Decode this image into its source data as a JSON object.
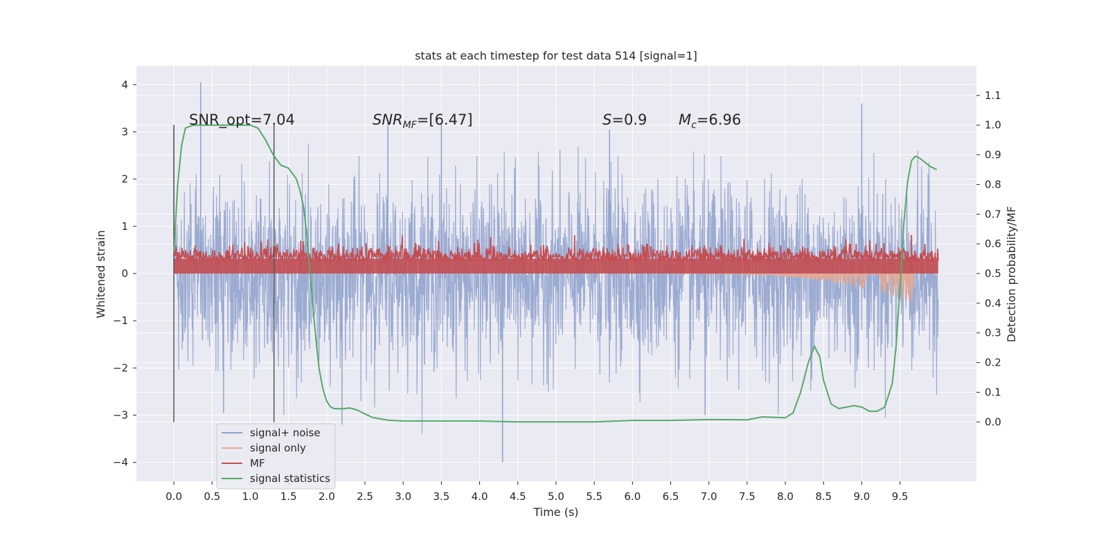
{
  "chart_data": {
    "type": "line",
    "title": "stats at each timestep for test data 514 [signal=1]",
    "xlabel": "Time (s)",
    "ylabel_left": "Whitened strain",
    "ylabel_right": "Detection probability/MF",
    "xlim": [
      -0.49,
      10.5
    ],
    "ylim_left": [
      -4.4,
      4.4
    ],
    "ylim_right": [
      -0.2,
      1.2
    ],
    "x_ticks": [
      "0.0",
      "0.5",
      "1.0",
      "1.5",
      "2.0",
      "2.5",
      "3.0",
      "3.5",
      "4.0",
      "4.5",
      "5.0",
      "5.5",
      "6.0",
      "6.5",
      "7.0",
      "7.5",
      "8.0",
      "8.5",
      "9.0",
      "9.5"
    ],
    "y_ticks_left": [
      "4",
      "3",
      "2",
      "1",
      "0",
      "−1",
      "−2",
      "−3",
      "−4"
    ],
    "y_ticks_right": [
      "1.1",
      "1.0",
      "0.9",
      "0.8",
      "0.7",
      "0.6",
      "0.5",
      "0.4",
      "0.3",
      "0.2",
      "0.1",
      "0.0"
    ],
    "grid": true,
    "legend_position": "lower-left",
    "annotations": {
      "snr_opt": "SNR_opt=7.04",
      "snr_mf_main": "SNR",
      "snr_mf_sub": "MF",
      "snr_mf_value": "=[6.47]",
      "s_main": "S",
      "s_value": "=0.9",
      "mc_main": "M",
      "mc_sub": "c",
      "mc_value": "=6.96"
    },
    "vertical_lines_x": [
      0.0,
      1.31
    ],
    "series": [
      {
        "name": "signal+ noise",
        "color": "#8da0cb",
        "axis": "left",
        "noise_amplitude": 1.3,
        "spikes": [
          [
            0.35,
            4.05
          ],
          [
            0.0,
            3.1
          ],
          [
            2.8,
            3.2
          ],
          [
            3.5,
            3.2
          ],
          [
            5.7,
            3.05
          ],
          [
            9.0,
            3.6
          ],
          [
            4.3,
            -4.0
          ],
          [
            2.2,
            -3.2
          ],
          [
            0.65,
            -2.95
          ],
          [
            6.95,
            -3.0
          ]
        ]
      },
      {
        "name": "signal only",
        "color": "#e9a88f",
        "axis": "left",
        "chirp_start": 6.5,
        "chirp_end": 9.68,
        "chirp_peak": -0.62
      },
      {
        "name": "MF",
        "color": "#c44e52",
        "axis": "right",
        "mean": 0.55,
        "spikes": [
          [
            1.66,
            0.61
          ],
          [
            9.65,
            0.63
          ]
        ]
      },
      {
        "name": "signal statistics",
        "color": "#55a868",
        "axis": "right",
        "x": [
          0.0,
          0.05,
          0.1,
          0.15,
          0.25,
          0.4,
          0.6,
          0.8,
          1.0,
          1.1,
          1.2,
          1.3,
          1.4,
          1.5,
          1.6,
          1.65,
          1.7,
          1.75,
          1.8,
          1.85,
          1.9,
          1.95,
          2.0,
          2.05,
          2.1,
          2.2,
          2.3,
          2.4,
          2.5,
          2.6,
          2.8,
          3.0,
          3.5,
          4.0,
          4.5,
          5.0,
          5.5,
          6.0,
          6.5,
          7.0,
          7.5,
          7.7,
          8.0,
          8.1,
          8.2,
          8.3,
          8.38,
          8.45,
          8.5,
          8.55,
          8.6,
          8.7,
          8.8,
          8.9,
          9.0,
          9.1,
          9.2,
          9.3,
          9.4,
          9.45,
          9.5,
          9.55,
          9.6,
          9.65,
          9.7,
          9.75,
          9.8,
          9.9,
          9.98
        ],
        "y": [
          0.57,
          0.8,
          0.93,
          0.99,
          1.0,
          1.0,
          1.0,
          1.0,
          1.0,
          0.99,
          0.95,
          0.9,
          0.865,
          0.855,
          0.82,
          0.78,
          0.72,
          0.6,
          0.45,
          0.3,
          0.18,
          0.11,
          0.07,
          0.05,
          0.045,
          0.044,
          0.047,
          0.04,
          0.027,
          0.015,
          0.006,
          0.003,
          0.003,
          0.003,
          0.0,
          0.0,
          0.0,
          0.005,
          0.005,
          0.008,
          0.007,
          0.017,
          0.014,
          0.03,
          0.1,
          0.2,
          0.255,
          0.22,
          0.14,
          0.1,
          0.06,
          0.045,
          0.05,
          0.055,
          0.05,
          0.036,
          0.036,
          0.05,
          0.13,
          0.26,
          0.45,
          0.67,
          0.81,
          0.88,
          0.895,
          0.89,
          0.88,
          0.86,
          0.85
        ]
      }
    ]
  }
}
